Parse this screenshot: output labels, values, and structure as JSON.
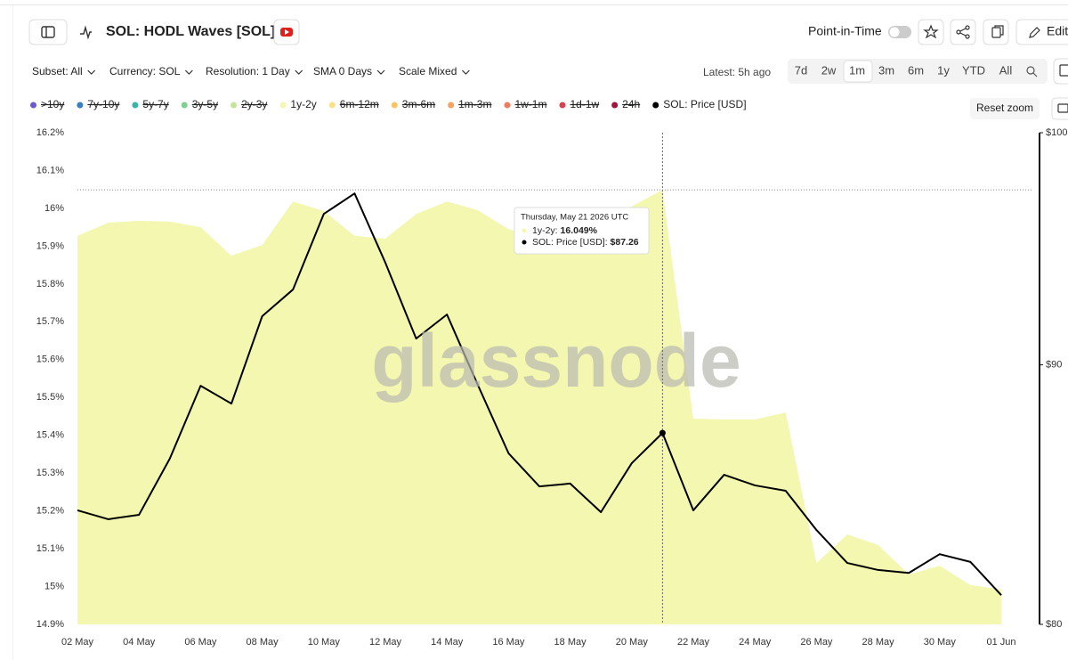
{
  "header": {
    "title": "SOL: HODL Waves [SOL]",
    "point_in_time": "Point-in-Time",
    "edit": "Edit"
  },
  "toolbar": {
    "dropdowns": [
      "Subset: All",
      "Currency: SOL",
      "Resolution: 1 Day",
      "SMA 0 Days",
      "Scale Mixed"
    ],
    "latest": "Latest: 5h ago",
    "ranges": [
      "7d",
      "2w",
      "1m",
      "3m",
      "6m",
      "1y",
      "YTD",
      "All"
    ],
    "reset_zoom": "Reset zoom"
  },
  "chart_data": {
    "type": "area_line",
    "watermark": "glassnode",
    "categories": [
      "02 May",
      null,
      "04 May",
      null,
      "06 May",
      null,
      "08 May",
      null,
      "10 May",
      null,
      "12 May",
      null,
      "14 May",
      null,
      "16 May",
      null,
      "18 May",
      null,
      "20 May",
      null,
      "22 May",
      null,
      "24 May",
      null,
      "26 May",
      null,
      "28 May",
      null,
      "30 May",
      null,
      "01 Jun"
    ],
    "legend_items": [
      {
        "name": ">10y",
        "color": "#6a5acd",
        "hidden": true
      },
      {
        "name": "7y-10y",
        "color": "#3a7fbf",
        "hidden": true
      },
      {
        "name": "5y-7y",
        "color": "#3bb2a7",
        "hidden": true
      },
      {
        "name": "3y-5y",
        "color": "#7fcf8f",
        "hidden": true
      },
      {
        "name": "2y-3y",
        "color": "#c2e59a",
        "hidden": true
      }
    ],
    "legend_items_after": [
      {
        "name": "6m-12m",
        "color": "#fbe08a",
        "hidden": true
      },
      {
        "name": "3m-6m",
        "color": "#fbc266",
        "hidden": true
      },
      {
        "name": "1m-3m",
        "color": "#f5a35e",
        "hidden": true
      },
      {
        "name": "1w-1m",
        "color": "#ef7a5d",
        "hidden": true
      },
      {
        "name": "1d-1w",
        "color": "#d8424c",
        "hidden": true
      },
      {
        "name": "24h",
        "color": "#a3133c",
        "hidden": true
      }
    ],
    "series": [
      {
        "name": "1y-2y",
        "color": "#f4f7b0",
        "values": [
          15.927,
          15.962,
          15.967,
          15.965,
          15.95,
          15.875,
          15.903,
          16.018,
          15.993,
          15.927,
          15.92,
          15.985,
          16.018,
          15.995,
          15.945,
          15.92,
          15.953,
          15.972,
          16.005,
          16.049,
          15.444,
          15.442,
          15.442,
          15.46,
          15.062,
          15.138,
          15.11,
          15.032,
          15.055,
          15.004,
          14.992
        ]
      },
      {
        "name": "SOL: Price [USD]",
        "color": "#000000",
        "axis": "y2",
        "values": [
          84.25,
          83.91,
          84.08,
          86.25,
          89.15,
          88.43,
          92.01,
          93.13,
          96.38,
          97.28,
          94.27,
          91.08,
          92.08,
          89.19,
          86.46,
          85.17,
          85.28,
          84.18,
          86.07,
          87.26,
          84.25,
          85.62,
          85.21,
          85.0,
          83.5,
          82.26,
          82.0,
          81.89,
          82.59,
          82.3,
          81.07
        ]
      }
    ],
    "ylim": [
      14.9,
      16.2
    ],
    "yticks": [
      {
        "value": 14.9,
        "label": "14.9%"
      },
      {
        "value": 15,
        "label": "15%"
      },
      {
        "value": 15.1,
        "label": "15.1%"
      },
      {
        "value": 15.2,
        "label": "15.2%"
      },
      {
        "value": 15.3,
        "label": "15.3%"
      },
      {
        "value": 15.4,
        "label": "15.4%"
      },
      {
        "value": 15.5,
        "label": "15.5%"
      },
      {
        "value": 15.6,
        "label": "15.6%"
      },
      {
        "value": 15.7,
        "label": "15.7%"
      },
      {
        "value": 15.8,
        "label": "15.8%"
      },
      {
        "value": 15.9,
        "label": "15.9%"
      },
      {
        "value": 16,
        "label": "16%"
      },
      {
        "value": 16.1,
        "label": "16.1%"
      },
      {
        "value": 16.2,
        "label": "16.2%"
      }
    ],
    "y2lim": [
      80,
      100
    ],
    "y2scale": "log",
    "y2ticks": [
      {
        "value": 80,
        "label": "$80"
      },
      {
        "value": 90,
        "label": "$90"
      },
      {
        "value": 100,
        "label": "$100"
      }
    ],
    "grid": false,
    "tooltip": {
      "title": "Thursday, May 21 2026 UTC",
      "area_label": "1y-2y:",
      "area_value": "16.049%",
      "line_label": "SOL: Price [USD]:",
      "line_value": "$87.26"
    }
  }
}
